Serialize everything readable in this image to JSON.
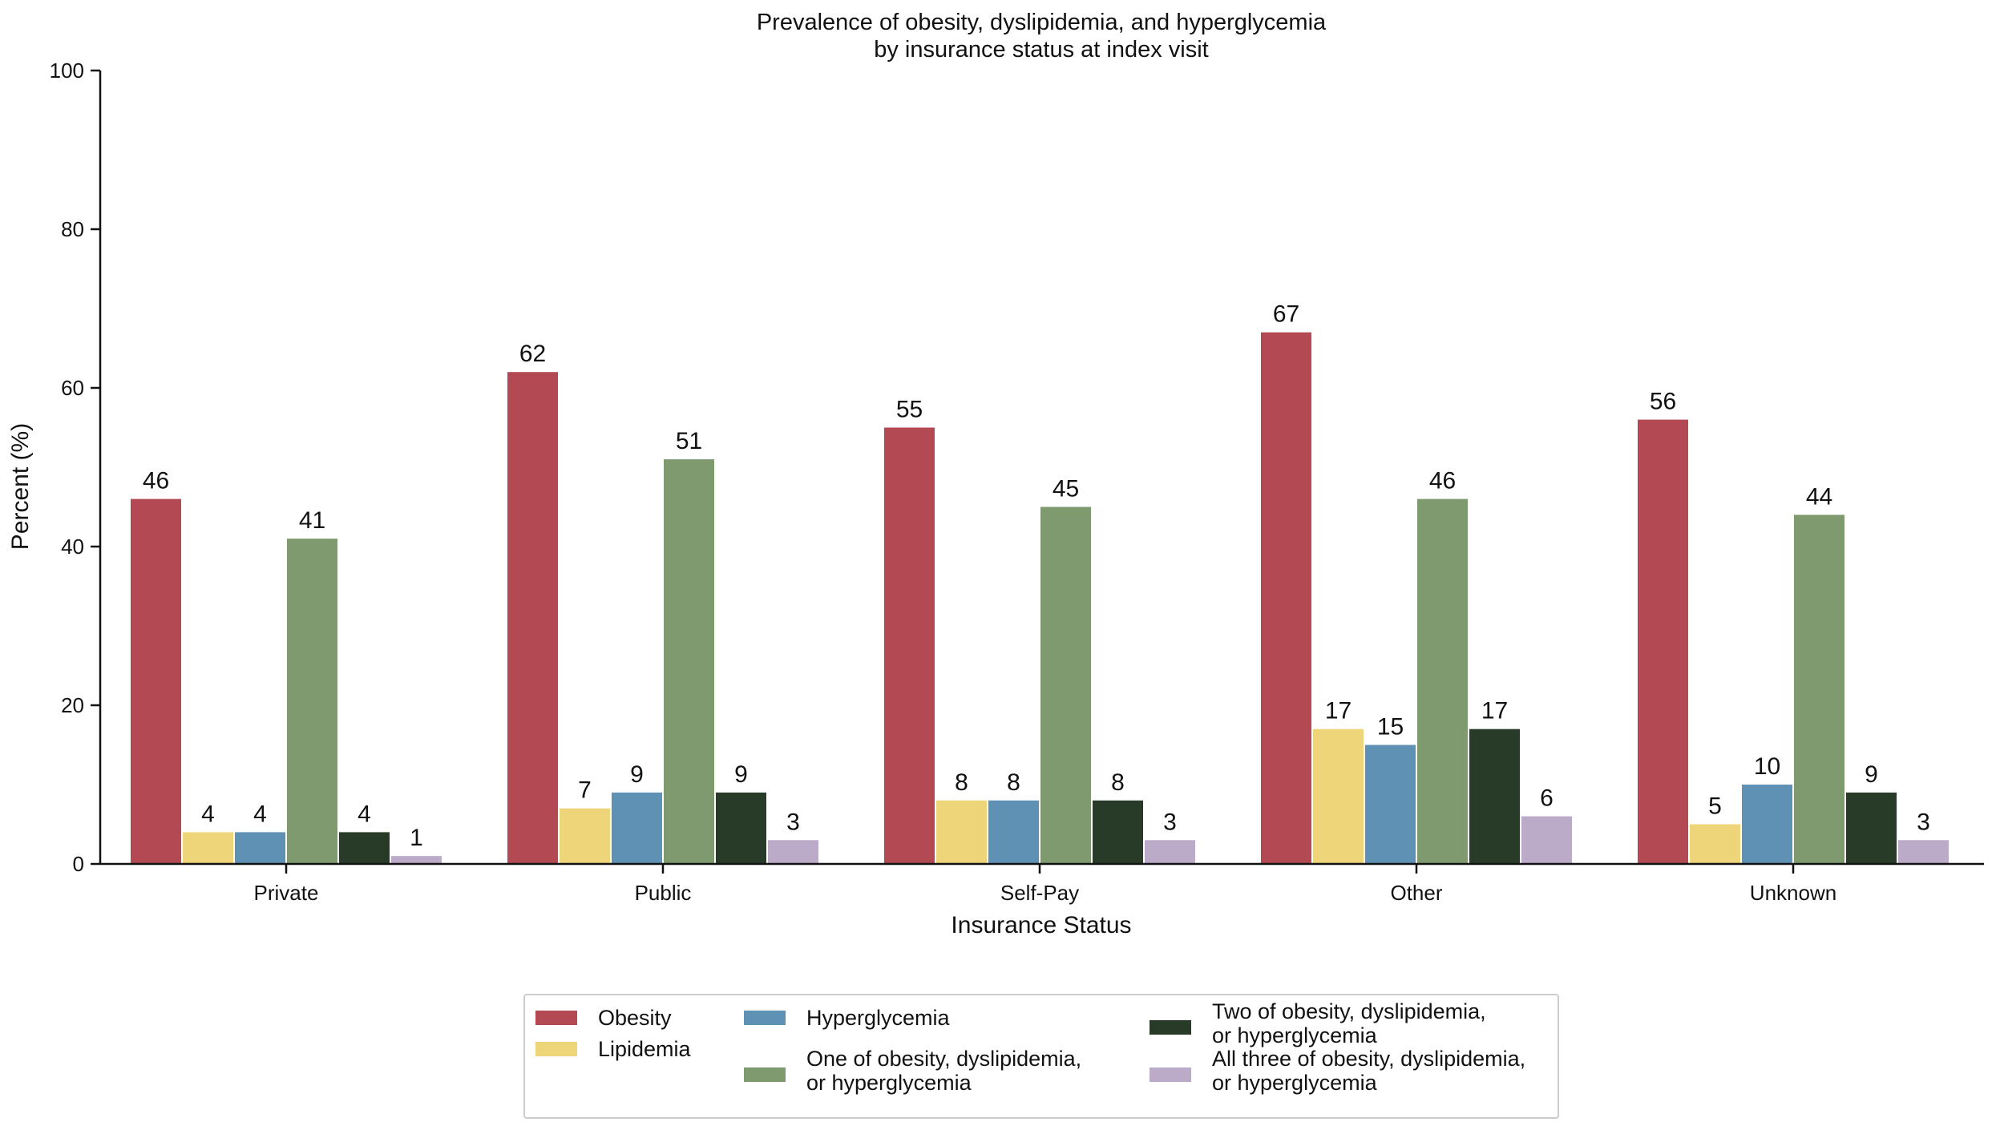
{
  "chart_data": {
    "type": "bar",
    "title": "Prevalence of obesity, dyslipidemia, and hyperglycemia",
    "subtitle": "by insurance status at index visit",
    "xlabel": "Insurance Status",
    "ylabel": "Percent (%)",
    "ylim": [
      0,
      100
    ],
    "yticks": [
      0,
      20,
      40,
      60,
      80,
      100
    ],
    "grid": false,
    "legend_position": "bottom-center",
    "categories": [
      "Private",
      "Public",
      "Self-Pay",
      "Other",
      "Unknown"
    ],
    "series": [
      {
        "name": "Obesity",
        "legend_lines": [
          "Obesity"
        ],
        "color": "#b34a53",
        "values": [
          46,
          62,
          55,
          67,
          56
        ]
      },
      {
        "name": "Lipidemia",
        "legend_lines": [
          "Lipidemia"
        ],
        "color": "#efd57a",
        "values": [
          4,
          7,
          8,
          17,
          5
        ]
      },
      {
        "name": "Hyperglycemia",
        "legend_lines": [
          "Hyperglycemia"
        ],
        "color": "#5f91b4",
        "values": [
          4,
          9,
          8,
          15,
          10
        ]
      },
      {
        "name": "One of obesity, dyslipidemia, or hyperglycemia",
        "legend_lines": [
          "One of obesity, dyslipidemia,",
          "or hyperglycemia"
        ],
        "color": "#809a6f",
        "values": [
          41,
          51,
          45,
          46,
          44
        ]
      },
      {
        "name": "Two of obesity, dyslipidemia, or hyperglycemia",
        "legend_lines": [
          "Two of obesity, dyslipidemia,",
          "or hyperglycemia"
        ],
        "color": "#283b29",
        "values": [
          4,
          9,
          8,
          17,
          9
        ]
      },
      {
        "name": "All three of obesity, dyslipidemia, or hyperglycemia",
        "legend_lines": [
          "All three of obesity, dyslipidemia,",
          "or hyperglycemia"
        ],
        "color": "#bcabc8",
        "values": [
          1,
          3,
          3,
          6,
          3
        ]
      }
    ]
  }
}
